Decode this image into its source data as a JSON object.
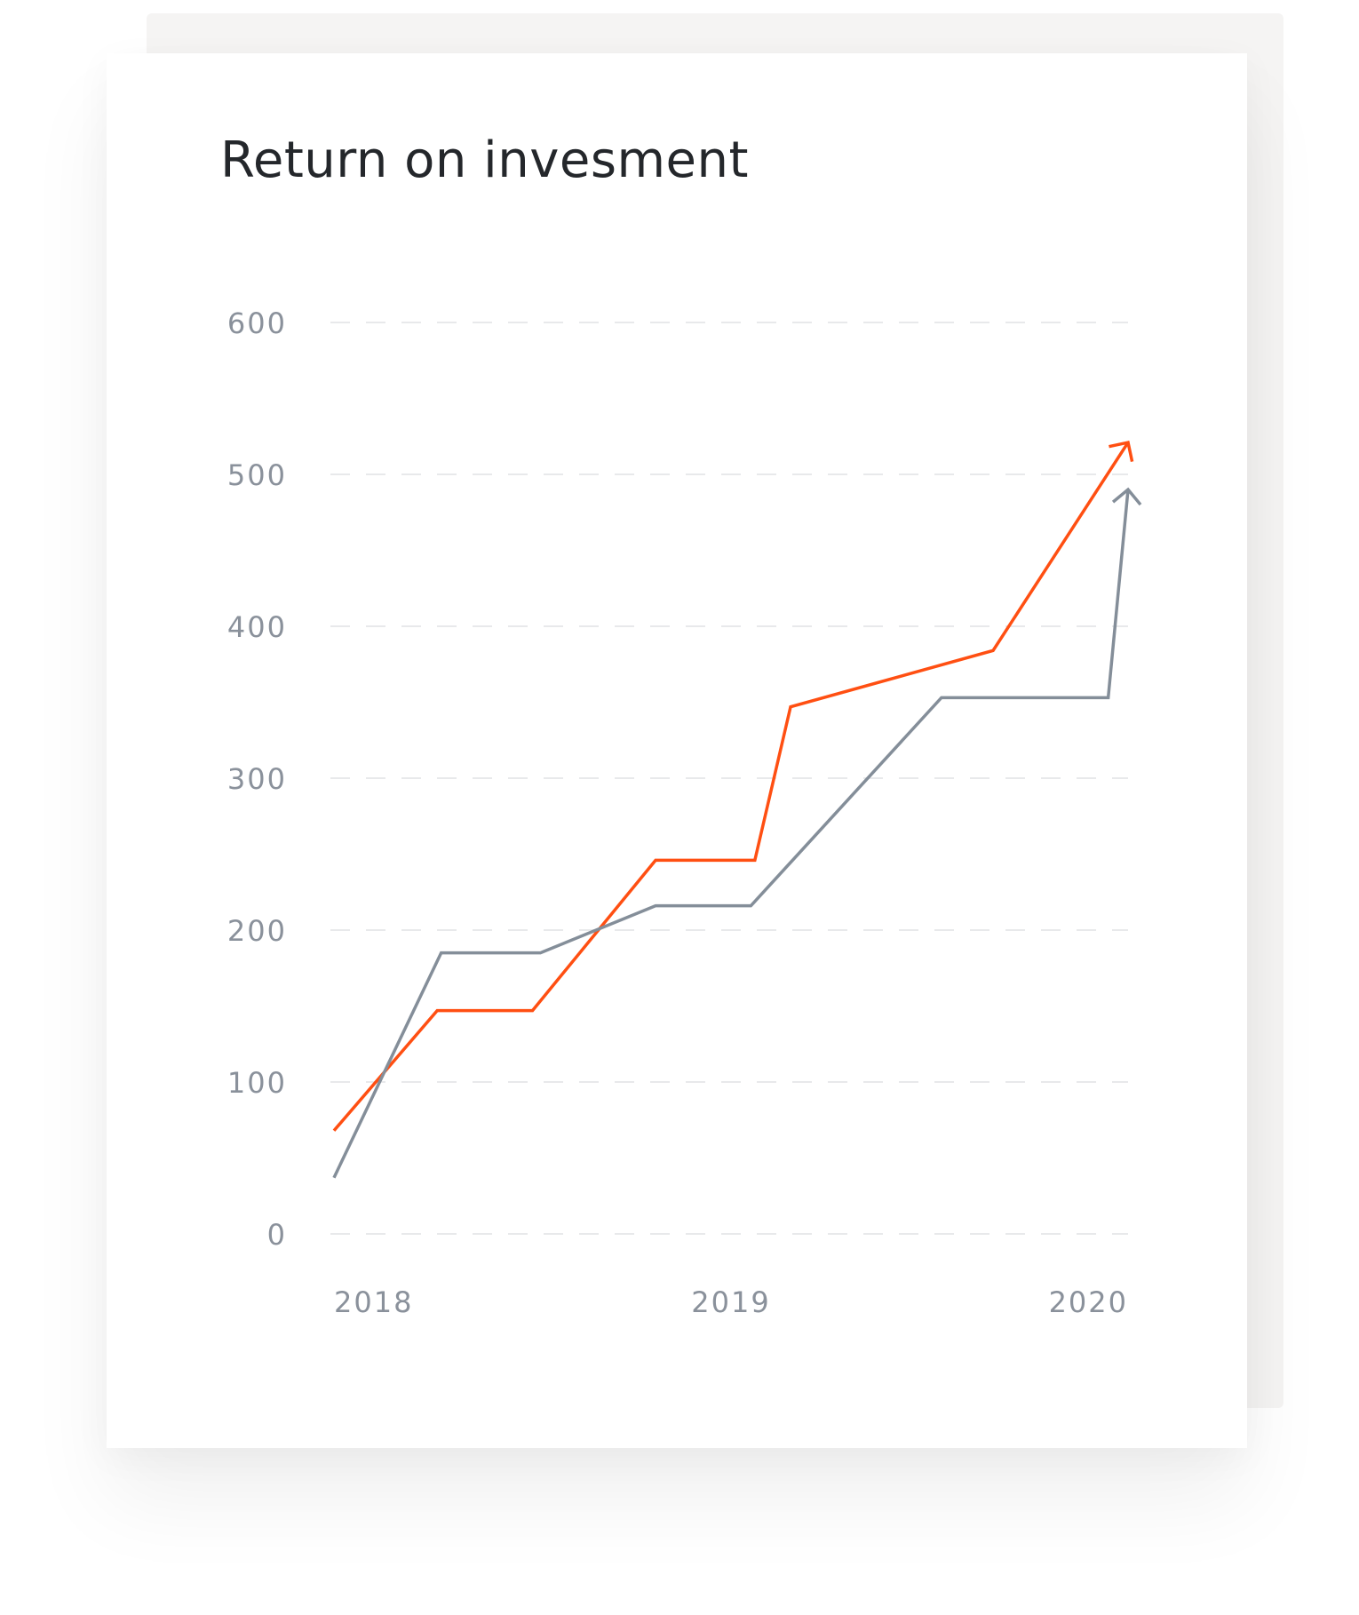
{
  "chart_data": {
    "type": "line",
    "title": "Return on invesment",
    "xlabel": "",
    "ylabel": "",
    "ylim": [
      0,
      600
    ],
    "xlim": [
      2018,
      2020
    ],
    "yticks": [
      0,
      100,
      200,
      300,
      400,
      500,
      600
    ],
    "xticks": [
      "2018",
      "2019",
      "2020"
    ],
    "grid": true,
    "series": [
      {
        "color": "#ff4f12",
        "x": [
          2018.0,
          2018.26,
          2018.5,
          2018.81,
          2019.06,
          2019.15,
          2019.66,
          2020.0
        ],
        "values": [
          68,
          147,
          147,
          246,
          246,
          347,
          384,
          521
        ]
      },
      {
        "color": "#848e99",
        "x": [
          2018.0,
          2018.27,
          2018.52,
          2018.81,
          2019.05,
          2019.53,
          2019.95,
          2020.0
        ],
        "values": [
          37,
          185,
          185,
          216,
          216,
          353,
          353,
          490
        ]
      }
    ]
  }
}
